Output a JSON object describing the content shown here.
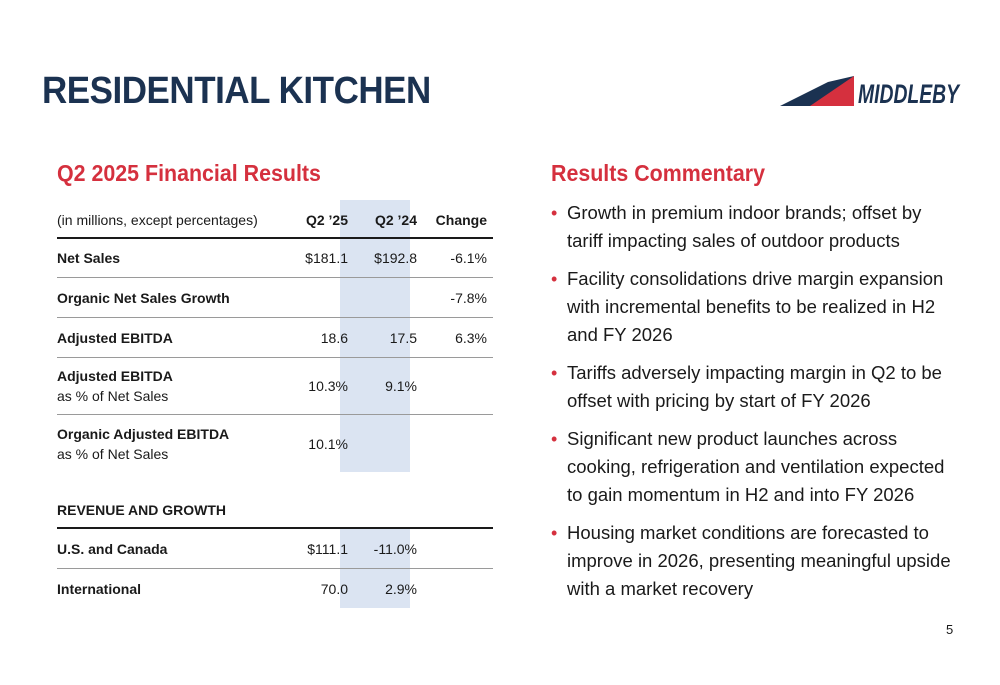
{
  "header": {
    "title": "RESIDENTIAL KITCHEN",
    "logo_text": "MIDDLEBY",
    "colors": {
      "navy": "#1b3251",
      "red": "#d5303e",
      "highlight": "#dbe4f2"
    }
  },
  "financials": {
    "title": "Q2 2025 Financial Results",
    "header": {
      "label": "(in millions, except percentages)",
      "c1": "Q2 ’25",
      "c2": "Q2 ’24",
      "c3": "Change"
    },
    "rows": [
      {
        "label": "Net Sales",
        "c1": "$181.1",
        "c2": "$192.8",
        "c3": "-6.1%"
      },
      {
        "label": "Organic Net Sales Growth",
        "c1": "",
        "c2": "",
        "c3": "-7.8%"
      },
      {
        "label": "Adjusted EBITDA",
        "c1": "18.6",
        "c2": "17.5",
        "c3": "6.3%"
      },
      {
        "label": "Adjusted EBITDA",
        "sublabel": "as % of Net Sales",
        "c1": "10.3%",
        "c2": "9.1%",
        "c3": ""
      },
      {
        "label": "Organic Adjusted EBITDA",
        "sublabel": "as % of Net Sales",
        "c1": "10.1%",
        "c2": "",
        "c3": ""
      }
    ],
    "section2_title": "REVENUE AND GROWTH",
    "section2_rows": [
      {
        "label": "U.S. and Canada",
        "c1": "$111.1",
        "c2": "-11.0%"
      },
      {
        "label": "International",
        "c1": "70.0",
        "c2": "2.9%"
      }
    ]
  },
  "commentary": {
    "title": "Results Commentary",
    "bullet_char": "•",
    "items": [
      "Growth in premium indoor brands; offset by tariff impacting sales of outdoor products",
      "Facility consolidations drive margin expansion with incremental benefits to be realized in H2 and FY 2026",
      "Tariffs adversely impacting margin in Q2 to be offset with pricing by start of FY 2026",
      "Significant new product launches across cooking, refrigeration and ventilation expected to gain momentum in H2 and into FY 2026",
      "Housing market conditions are forecasted to improve in 2026, presenting meaningful upside with a market recovery"
    ]
  },
  "footer": {
    "page_number": "5"
  }
}
